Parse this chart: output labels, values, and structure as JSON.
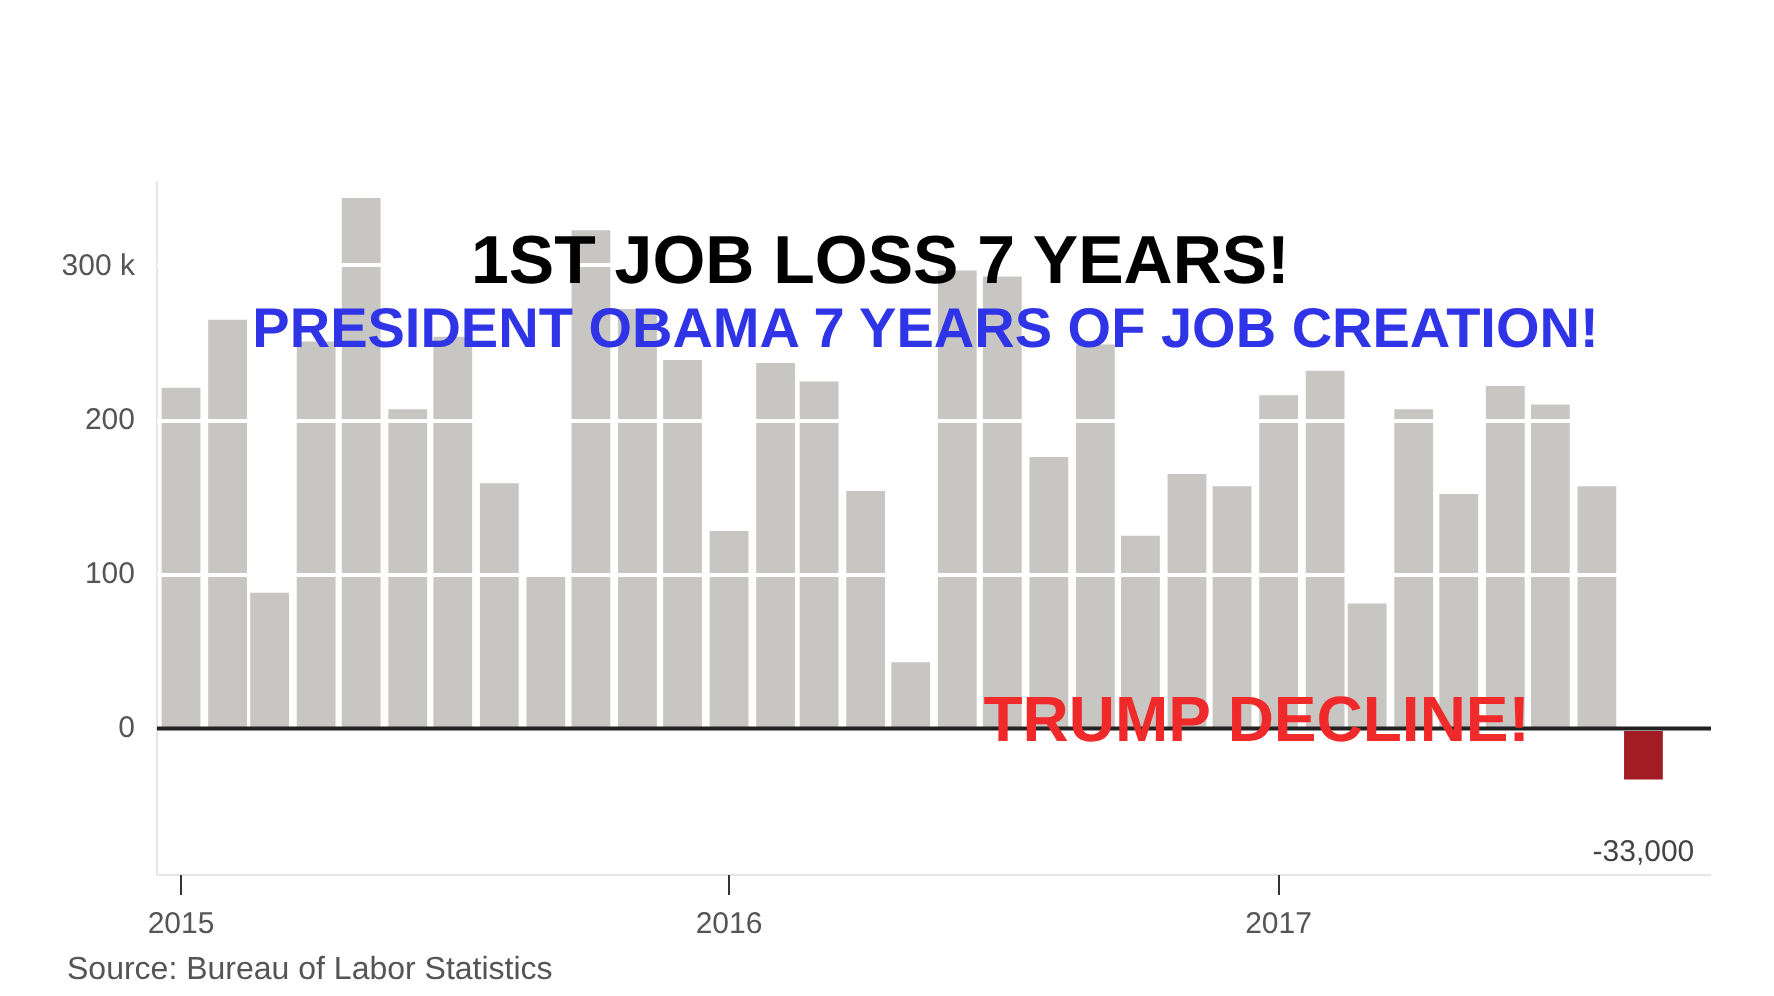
{
  "chart_data": {
    "type": "bar",
    "x": [
      "2015-01",
      "2015-02",
      "2015-03",
      "2015-04",
      "2015-05",
      "2015-06",
      "2015-07",
      "2015-08",
      "2015-09",
      "2015-10",
      "2015-11",
      "2015-12",
      "2016-01",
      "2016-02",
      "2016-03",
      "2016-04",
      "2016-05",
      "2016-06",
      "2016-07",
      "2016-08",
      "2016-09",
      "2016-10",
      "2016-11",
      "2016-12",
      "2017-01",
      "2017-02",
      "2017-03",
      "2017-04",
      "2017-05",
      "2017-06",
      "2017-07",
      "2017-08",
      "2017-09"
    ],
    "values": [
      221,
      265,
      88,
      251,
      344,
      207,
      254,
      159,
      100,
      323,
      272,
      239,
      128,
      237,
      225,
      154,
      43,
      297,
      293,
      176,
      249,
      125,
      165,
      157,
      216,
      232,
      81,
      207,
      152,
      222,
      210,
      157,
      -33
    ],
    "colors": [
      "#c8c6c3",
      "#c8c6c3",
      "#c8c6c3",
      "#c8c6c3",
      "#c8c6c3",
      "#c8c6c3",
      "#c8c6c3",
      "#c8c6c3",
      "#c8c6c3",
      "#c8c6c3",
      "#c8c6c3",
      "#c8c6c3",
      "#c8c6c3",
      "#c8c6c3",
      "#c8c6c3",
      "#c8c6c3",
      "#c8c6c3",
      "#c8c6c3",
      "#c8c6c3",
      "#c8c6c3",
      "#c8c6c3",
      "#c8c6c3",
      "#c8c6c3",
      "#c8c6c3",
      "#c8c6c3",
      "#c8c6c3",
      "#c8c6c3",
      "#c8c6c3",
      "#c8c6c3",
      "#c8c6c3",
      "#c8c6c3",
      "#c8c6c3",
      "#a31c24"
    ],
    "xlim": [
      "2014-12-16",
      "2017-10-16"
    ],
    "xticks": [
      {
        "value": "2015-01",
        "label": "2015"
      },
      {
        "value": "2016-01",
        "label": "2016"
      },
      {
        "value": "2017-01",
        "label": "2017"
      }
    ],
    "ylim": [
      -95,
      355
    ],
    "yticks": [
      0,
      100,
      200,
      {
        "value": 300,
        "label": "300 k"
      }
    ],
    "grid": "y",
    "ref_lines": [
      {
        "axis": "y",
        "value": 0,
        "color": "#222222"
      }
    ],
    "annotations": [
      "1ST JOB LOSS 7 YEARS!",
      "PRESIDENT OBAMA 7 YEARS OF JOB CREATION!",
      "TRUMP DECLINE!",
      "Source: Bureau of Labor Statistics",
      {
        "text": "-33,000",
        "x": "2017-09",
        "y": -33
      }
    ]
  }
}
